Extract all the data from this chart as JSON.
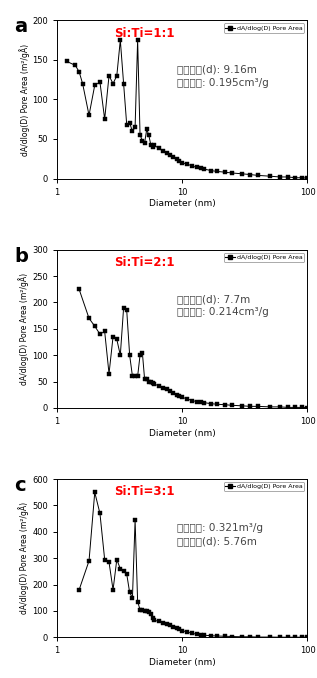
{
  "panels": [
    {
      "label": "a",
      "title": "Si:Ti=1:1",
      "annotation_line1": "기공크기(d): 9.16m",
      "annotation_line2": "기공부피: 0.195cm³/g",
      "ylim": [
        0,
        200
      ],
      "yticks": [
        0,
        50,
        100,
        150,
        200
      ],
      "x": [
        1.2,
        1.4,
        1.5,
        1.6,
        1.8,
        2.0,
        2.2,
        2.4,
        2.6,
        2.8,
        3.0,
        3.2,
        3.4,
        3.6,
        3.8,
        4.0,
        4.2,
        4.4,
        4.6,
        4.8,
        5.0,
        5.2,
        5.4,
        5.6,
        5.8,
        6.0,
        6.5,
        7.0,
        7.5,
        8.0,
        8.5,
        9.0,
        9.5,
        10.0,
        11.0,
        12.0,
        13.0,
        14.0,
        15.0,
        17.0,
        19.0,
        22.0,
        25.0,
        30.0,
        35.0,
        40.0,
        50.0,
        60.0,
        70.0,
        80.0,
        90.0,
        100.0
      ],
      "y": [
        148,
        143,
        135,
        120,
        80,
        118,
        122,
        75,
        130,
        120,
        130,
        175,
        120,
        68,
        70,
        60,
        65,
        175,
        55,
        48,
        45,
        62,
        55,
        43,
        40,
        42,
        38,
        35,
        32,
        30,
        27,
        25,
        22,
        20,
        18,
        16,
        14,
        13,
        12,
        10,
        9,
        8,
        7,
        6,
        5,
        4,
        3,
        2,
        2,
        1,
        1,
        0.5
      ]
    },
    {
      "label": "b",
      "title": "Si:Ti=2:1",
      "annotation_line1": "기공크기(d): 7.7m",
      "annotation_line2": "기공부피: 0.214cm³/g",
      "ylim": [
        0,
        300
      ],
      "yticks": [
        0,
        50,
        100,
        150,
        200,
        250,
        300
      ],
      "x": [
        1.5,
        1.8,
        2.0,
        2.2,
        2.4,
        2.6,
        2.8,
        3.0,
        3.2,
        3.4,
        3.6,
        3.8,
        4.0,
        4.2,
        4.4,
        4.6,
        4.8,
        5.0,
        5.2,
        5.4,
        5.6,
        5.8,
        6.0,
        6.5,
        7.0,
        7.5,
        8.0,
        8.5,
        9.0,
        9.5,
        10.0,
        11.0,
        12.0,
        13.0,
        14.0,
        15.0,
        17.0,
        19.0,
        22.0,
        25.0,
        30.0,
        35.0,
        40.0,
        50.0,
        60.0,
        70.0,
        80.0,
        90.0,
        100.0
      ],
      "y": [
        225,
        170,
        155,
        140,
        145,
        65,
        135,
        130,
        100,
        190,
        185,
        100,
        60,
        60,
        60,
        100,
        105,
        55,
        55,
        50,
        50,
        48,
        45,
        42,
        38,
        35,
        32,
        28,
        25,
        22,
        20,
        17,
        14,
        12,
        11,
        10,
        8,
        7,
        6,
        5,
        4,
        3,
        3,
        2,
        2,
        1,
        1,
        1,
        0.5
      ]
    },
    {
      "label": "c",
      "title": "Si:Ti=3:1",
      "annotation_line1": "기공부피: 0.321m³/g",
      "annotation_line2": "기공크기(d): 5.76m",
      "ylim": [
        0,
        600
      ],
      "yticks": [
        0,
        100,
        200,
        300,
        400,
        500,
        600
      ],
      "x": [
        1.5,
        1.8,
        2.0,
        2.2,
        2.4,
        2.6,
        2.8,
        3.0,
        3.2,
        3.4,
        3.6,
        3.8,
        4.0,
        4.2,
        4.4,
        4.6,
        4.8,
        5.0,
        5.2,
        5.4,
        5.6,
        5.8,
        6.0,
        6.5,
        7.0,
        7.5,
        8.0,
        8.5,
        9.0,
        9.5,
        10.0,
        11.0,
        12.0,
        13.0,
        14.0,
        15.0,
        17.0,
        19.0,
        22.0,
        25.0,
        30.0,
        35.0,
        40.0,
        50.0,
        60.0,
        70.0,
        80.0,
        90.0,
        100.0
      ],
      "y": [
        180,
        290,
        550,
        470,
        295,
        285,
        180,
        295,
        260,
        250,
        240,
        170,
        150,
        445,
        135,
        105,
        105,
        100,
        100,
        95,
        90,
        75,
        65,
        60,
        55,
        50,
        45,
        40,
        35,
        30,
        25,
        20,
        15,
        12,
        10,
        8,
        6,
        5,
        4,
        3,
        2,
        2,
        1,
        1,
        0.5,
        0.5,
        0.5,
        0.5,
        0.5
      ]
    }
  ],
  "ylabel": "dA/dlog(D) Pore Area (m²/gÅ)",
  "xlabel": "Diameter (nm)",
  "legend_label": "dA/dlog(D) Pore Area",
  "title_color": "#FF0000",
  "line_color": "#000000",
  "bg_color": "#FFFFFF",
  "annot_color": "#444444"
}
